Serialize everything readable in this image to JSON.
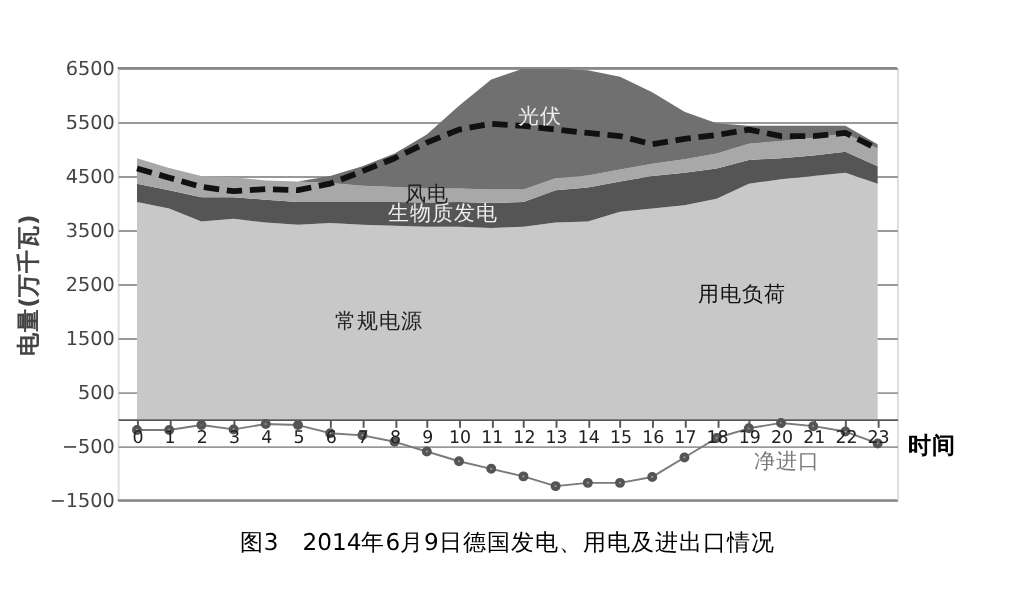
{
  "chart_data": {
    "type": "area",
    "stacked": true,
    "title": "图3　2014年6月9日德国发电、用电及进出口情况",
    "xlabel": "时间",
    "ylabel": "电量(万千瓦)",
    "x": [
      0,
      1,
      2,
      3,
      4,
      5,
      6,
      7,
      8,
      9,
      10,
      11,
      12,
      13,
      14,
      15,
      16,
      17,
      18,
      19,
      20,
      21,
      22,
      23
    ],
    "xlim": [
      -0.6,
      23.6
    ],
    "xticks": [
      0,
      1,
      2,
      3,
      4,
      5,
      6,
      7,
      8,
      9,
      10,
      11,
      12,
      13,
      14,
      15,
      16,
      17,
      18,
      19,
      20,
      21,
      22,
      23
    ],
    "ylim": [
      -1500,
      6500
    ],
    "yticks": [
      -1500,
      -500,
      500,
      1500,
      2500,
      3500,
      4500,
      5500,
      6500
    ],
    "grid": "y",
    "legend": false,
    "series": [
      {
        "name": "常规电源",
        "type": "area",
        "color": "#c8c8c8",
        "values": [
          4020,
          3900,
          3660,
          3710,
          3640,
          3600,
          3630,
          3600,
          3580,
          3560,
          3560,
          3540,
          3560,
          3640,
          3660,
          3840,
          3900,
          3960,
          4080,
          4360,
          4440,
          4500,
          4560,
          4360
        ]
      },
      {
        "name": "生物质发电",
        "type": "area",
        "color": "#555555",
        "values": [
          340,
          340,
          450,
          400,
          420,
          420,
          390,
          420,
          440,
          450,
          460,
          460,
          460,
          600,
          630,
          560,
          600,
          600,
          560,
          440,
          390,
          380,
          390,
          320
        ]
      },
      {
        "name": "风电",
        "type": "area",
        "color": "#a8a8a8",
        "values": [
          470,
          410,
          390,
          370,
          360,
          380,
          350,
          300,
          280,
          260,
          250,
          250,
          230,
          220,
          220,
          220,
          230,
          250,
          280,
          300,
          320,
          330,
          340,
          330
        ]
      },
      {
        "name": "光伏",
        "type": "area",
        "color": "#707070",
        "values": [
          0,
          0,
          0,
          0,
          0,
          0,
          130,
          360,
          620,
          1000,
          1530,
          2040,
          2240,
          2030,
          1950,
          1720,
          1320,
          880,
          560,
          330,
          280,
          220,
          140,
          80
        ]
      },
      {
        "name": "用电负荷",
        "type": "line",
        "color": "#111111",
        "line_style": "dashed",
        "marker": "none",
        "values": [
          4640,
          4470,
          4300,
          4220,
          4260,
          4240,
          4360,
          4590,
          4830,
          5120,
          5360,
          5470,
          5430,
          5360,
          5300,
          5240,
          5090,
          5190,
          5260,
          5360,
          5240,
          5240,
          5300,
          5000
        ]
      },
      {
        "name": "净进口",
        "type": "line",
        "color": "#7a7a7a",
        "line_style": "solid",
        "marker": "circle",
        "values": [
          -200,
          -200,
          -110,
          -190,
          -90,
          -110,
          -260,
          -300,
          -420,
          -600,
          -780,
          -920,
          -1060,
          -1240,
          -1180,
          -1180,
          -1070,
          -710,
          -350,
          -170,
          -70,
          -130,
          -230,
          -450
        ]
      }
    ]
  }
}
